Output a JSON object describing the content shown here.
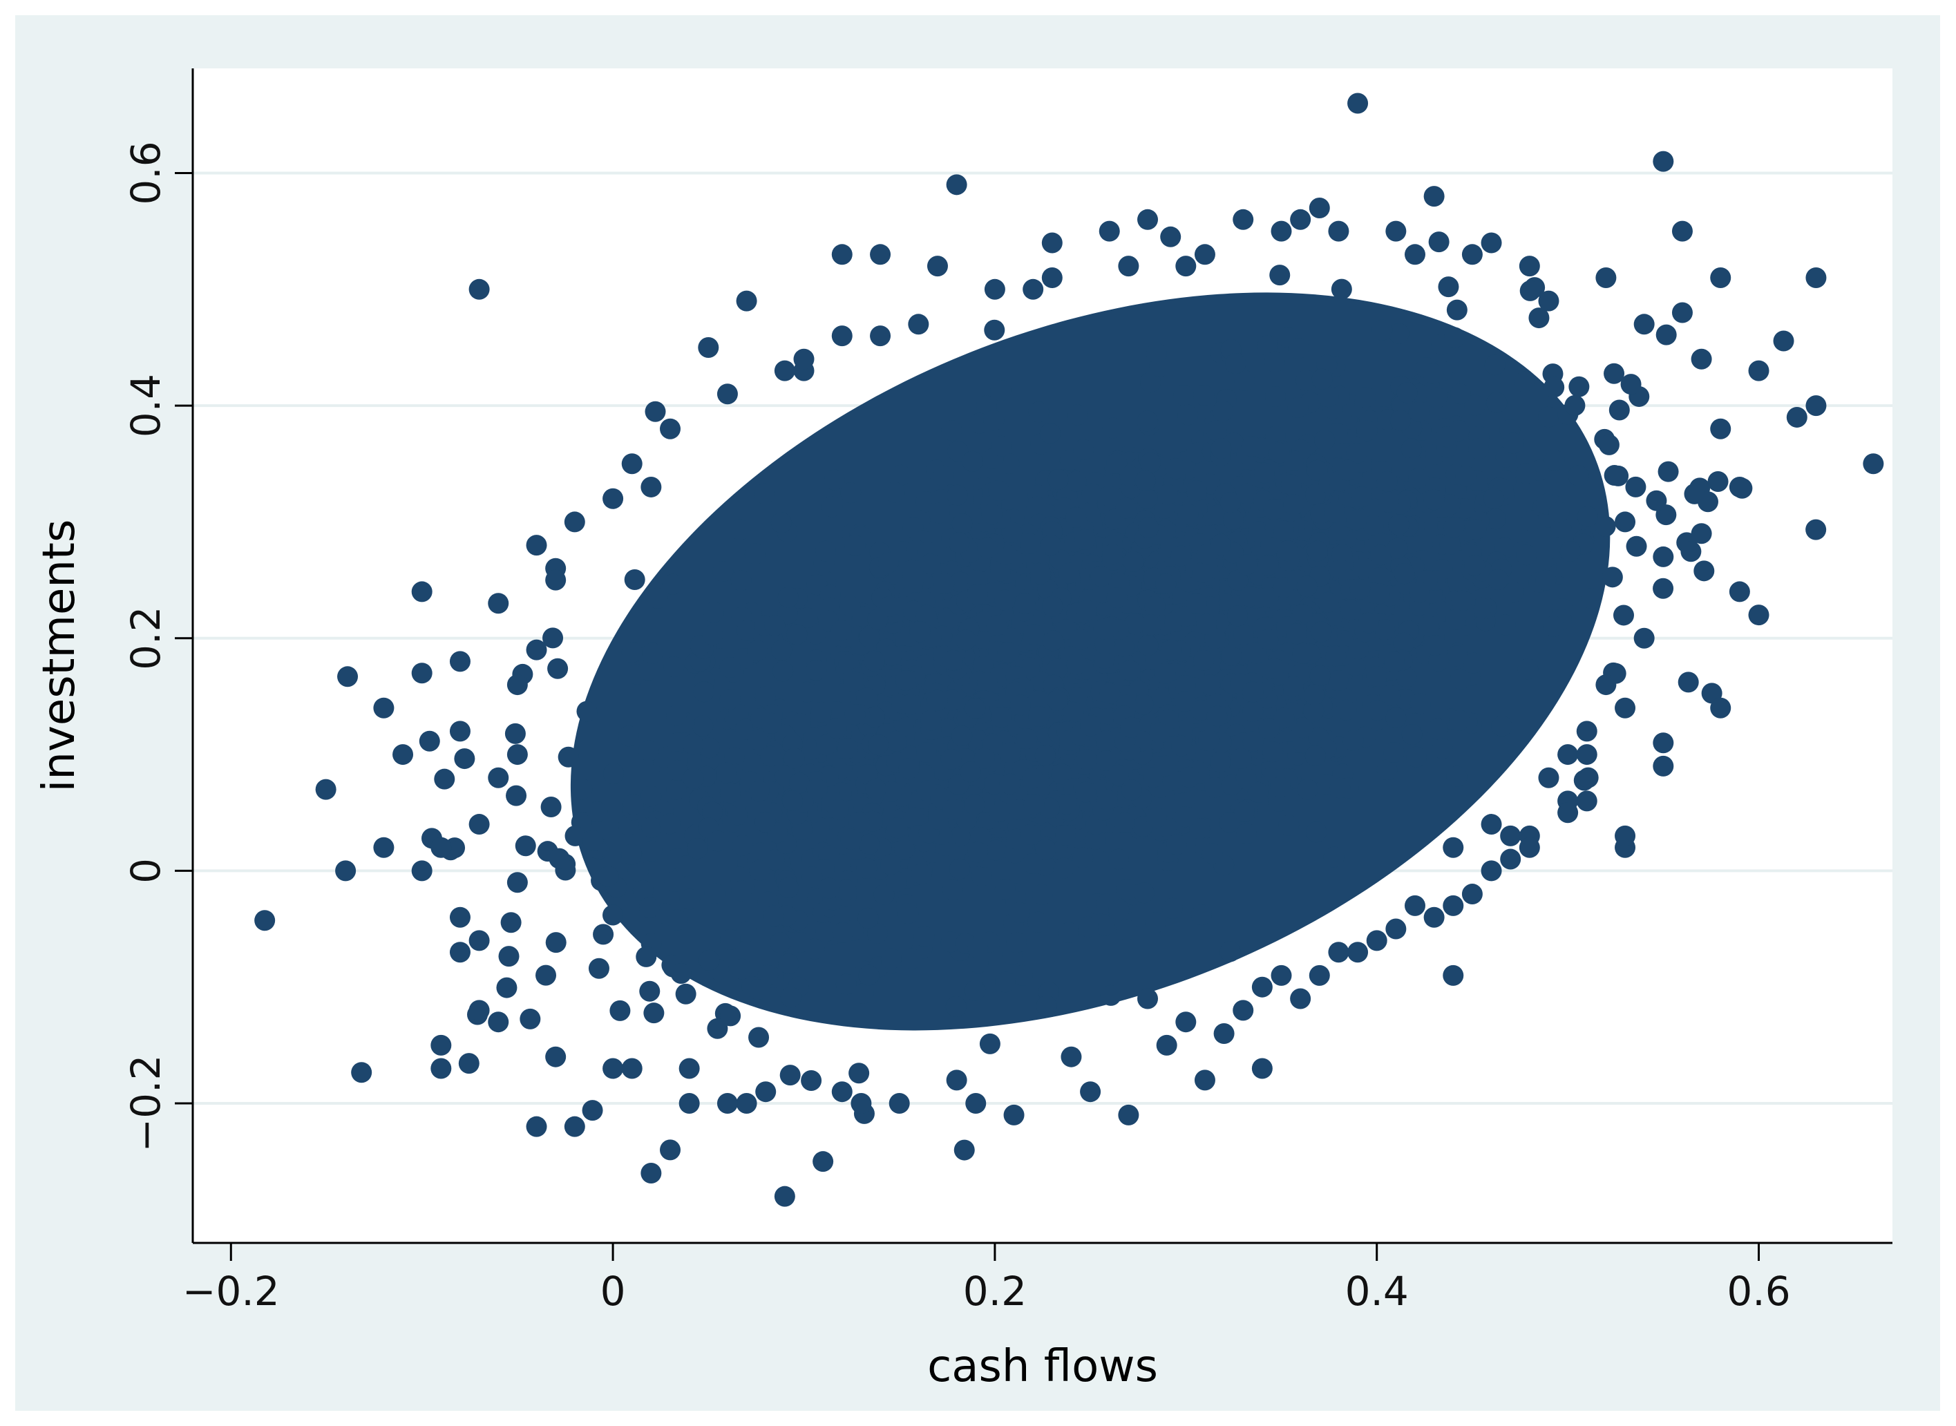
{
  "chart_data": {
    "type": "scatter",
    "title": "",
    "xlabel": "cash flows",
    "ylabel": "investments",
    "xlim": [
      -0.22,
      0.67
    ],
    "ylim": [
      -0.32,
      0.69
    ],
    "xticks": [
      -0.2,
      0,
      0.2,
      0.4,
      0.6
    ],
    "yticks": [
      -0.2,
      0,
      0.2,
      0.4,
      0.6
    ],
    "xtick_labels": [
      "−0.2",
      "0",
      "0.2",
      "0.4",
      "0.6"
    ],
    "ytick_labels": [
      "−0.2",
      "0",
      "0.2",
      "0.4",
      "0.6"
    ],
    "grid": "horizontal",
    "marker_color": "#1d466d",
    "background_color": "#eaf2f3",
    "plot_background": "#ffffff",
    "gridline_color": "#e6eff0",
    "dense_core": {
      "description": "tens of thousands of overlapping points forming a solid elliptical cloud",
      "center": [
        0.25,
        0.18
      ],
      "x_range": [
        -0.05,
        0.52
      ],
      "y_range": [
        -0.12,
        0.5
      ]
    },
    "series": [
      {
        "x": [
          0.39,
          0.55,
          0.18,
          0.43,
          0.56,
          0.63,
          0.66,
          0.58,
          0.6,
          0.62,
          0.63,
          0.6,
          0.58,
          0.59,
          0.55,
          0.53,
          -0.14,
          -0.12,
          -0.11,
          -0.1,
          -0.09,
          -0.08,
          -0.07,
          -0.07,
          -0.09,
          -0.06,
          -0.04,
          -0.03,
          -0.04,
          -0.1,
          -0.07,
          -0.12,
          -0.1,
          -0.09,
          -0.08,
          -0.05,
          -0.02,
          0.02,
          0.03,
          0.09,
          0.11,
          0.04,
          0.01,
          0.12,
          0.07,
          0.06,
          0.15,
          0.19,
          0.21,
          0.27,
          0.25,
          0.31,
          0.34,
          0.44,
          0.51,
          0.5,
          0.47,
          0.53,
          0.07,
          0.05,
          0.02,
          0.0,
          -0.02,
          -0.03,
          -0.05,
          0.1,
          0.12,
          0.14,
          0.17,
          0.23,
          0.28,
          0.33,
          0.37,
          0.41,
          0.45,
          0.48,
          0.52,
          0.46,
          0.49,
          0.26,
          0.3,
          0.36,
          0.42,
          0.22,
          0.14,
          0.1,
          0.54,
          0.56,
          0.57,
          0.58,
          0.59,
          0.57,
          0.55,
          0.53,
          0.54,
          0.52,
          0.51,
          0.5,
          0.55,
          0.53,
          0.51,
          0.49,
          0.48,
          0.47,
          0.45,
          0.46,
          0.44,
          0.4,
          0.36,
          0.32,
          0.29,
          0.24,
          0.18,
          0.13,
          0.08,
          0.04,
          0.0,
          -0.03,
          -0.06,
          -0.08,
          -0.07,
          -0.05,
          -0.04,
          -0.06,
          -0.08,
          0.01,
          0.03,
          0.06,
          0.09,
          0.12,
          0.16,
          0.2,
          0.35,
          0.38,
          0.31,
          0.27,
          0.23,
          0.41,
          0.39,
          0.37,
          0.33,
          0.3,
          0.28,
          0.34,
          0.43,
          0.46,
          0.48,
          0.5,
          0.44,
          0.42,
          0.38,
          0.35
        ],
        "y": [
          0.66,
          0.61,
          0.59,
          0.58,
          0.55,
          0.51,
          0.35,
          0.51,
          0.43,
          0.39,
          0.4,
          0.22,
          0.14,
          0.24,
          0.11,
          0.02,
          0.0,
          0.14,
          0.1,
          0.0,
          -0.15,
          0.18,
          0.5,
          -0.12,
          -0.17,
          0.23,
          0.28,
          0.26,
          -0.22,
          0.24,
          -0.06,
          0.02,
          0.17,
          0.02,
          -0.04,
          -0.01,
          -0.22,
          -0.26,
          -0.24,
          -0.28,
          -0.25,
          -0.17,
          -0.17,
          -0.19,
          -0.2,
          -0.2,
          -0.2,
          -0.2,
          -0.21,
          -0.21,
          -0.19,
          -0.18,
          -0.17,
          -0.09,
          0.06,
          0.1,
          0.03,
          0.03,
          0.49,
          0.45,
          0.33,
          0.32,
          0.3,
          0.25,
          0.16,
          0.43,
          0.53,
          0.46,
          0.52,
          0.54,
          0.56,
          0.56,
          0.57,
          0.55,
          0.53,
          0.52,
          0.51,
          0.54,
          0.49,
          0.55,
          0.52,
          0.56,
          0.53,
          0.5,
          0.53,
          0.44,
          0.47,
          0.48,
          0.44,
          0.38,
          0.33,
          0.29,
          0.27,
          0.3,
          0.2,
          0.16,
          0.12,
          0.06,
          0.09,
          0.14,
          0.1,
          0.08,
          0.03,
          0.01,
          -0.02,
          0.04,
          -0.03,
          -0.06,
          -0.11,
          -0.14,
          -0.15,
          -0.16,
          -0.18,
          -0.2,
          -0.19,
          -0.2,
          -0.17,
          -0.16,
          -0.13,
          -0.07,
          0.04,
          0.1,
          0.19,
          0.08,
          0.12,
          0.35,
          0.38,
          0.41,
          0.43,
          0.46,
          0.47,
          0.5,
          0.55,
          0.55,
          0.53,
          0.52,
          0.51,
          -0.05,
          -0.07,
          -0.09,
          -0.12,
          -0.13,
          -0.11,
          -0.1,
          -0.04,
          0.0,
          0.02,
          0.05,
          0.02,
          -0.03,
          -0.07,
          -0.09
        ]
      }
    ]
  }
}
